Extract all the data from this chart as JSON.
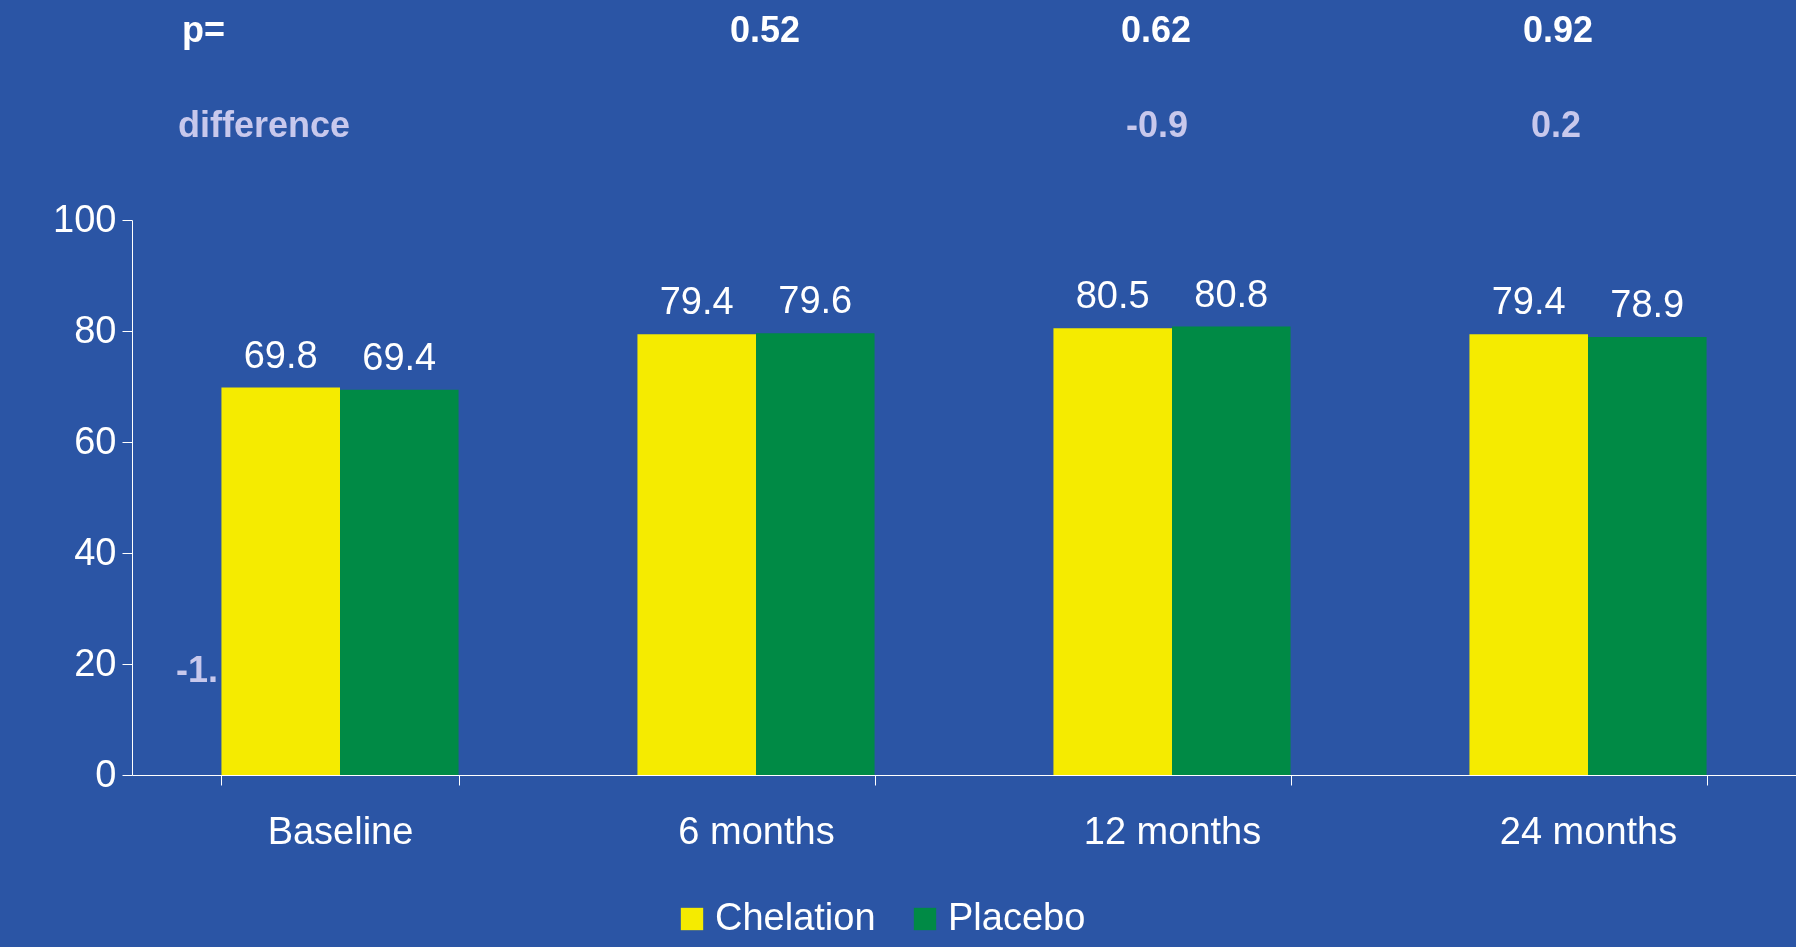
{
  "chart_data": {
    "type": "bar",
    "categories": [
      "Baseline",
      "6 months",
      "12 months",
      "24 months"
    ],
    "series": [
      {
        "name": "Chelation",
        "color": "#f5eb00",
        "values": [
          69.8,
          79.4,
          80.5,
          79.4
        ]
      },
      {
        "name": "Placebo",
        "color": "#008a45",
        "values": [
          69.4,
          79.6,
          80.8,
          78.9
        ]
      }
    ],
    "ylim": [
      0,
      100
    ],
    "yticks": [
      0,
      20,
      40,
      60,
      80,
      100
    ],
    "grid": false,
    "legend": "bottom",
    "data_labels": true,
    "annotations": [
      "p=",
      "0.52",
      "0.62",
      "0.92",
      "difference",
      "-0.9",
      "0.2",
      "-1."
    ]
  }
}
